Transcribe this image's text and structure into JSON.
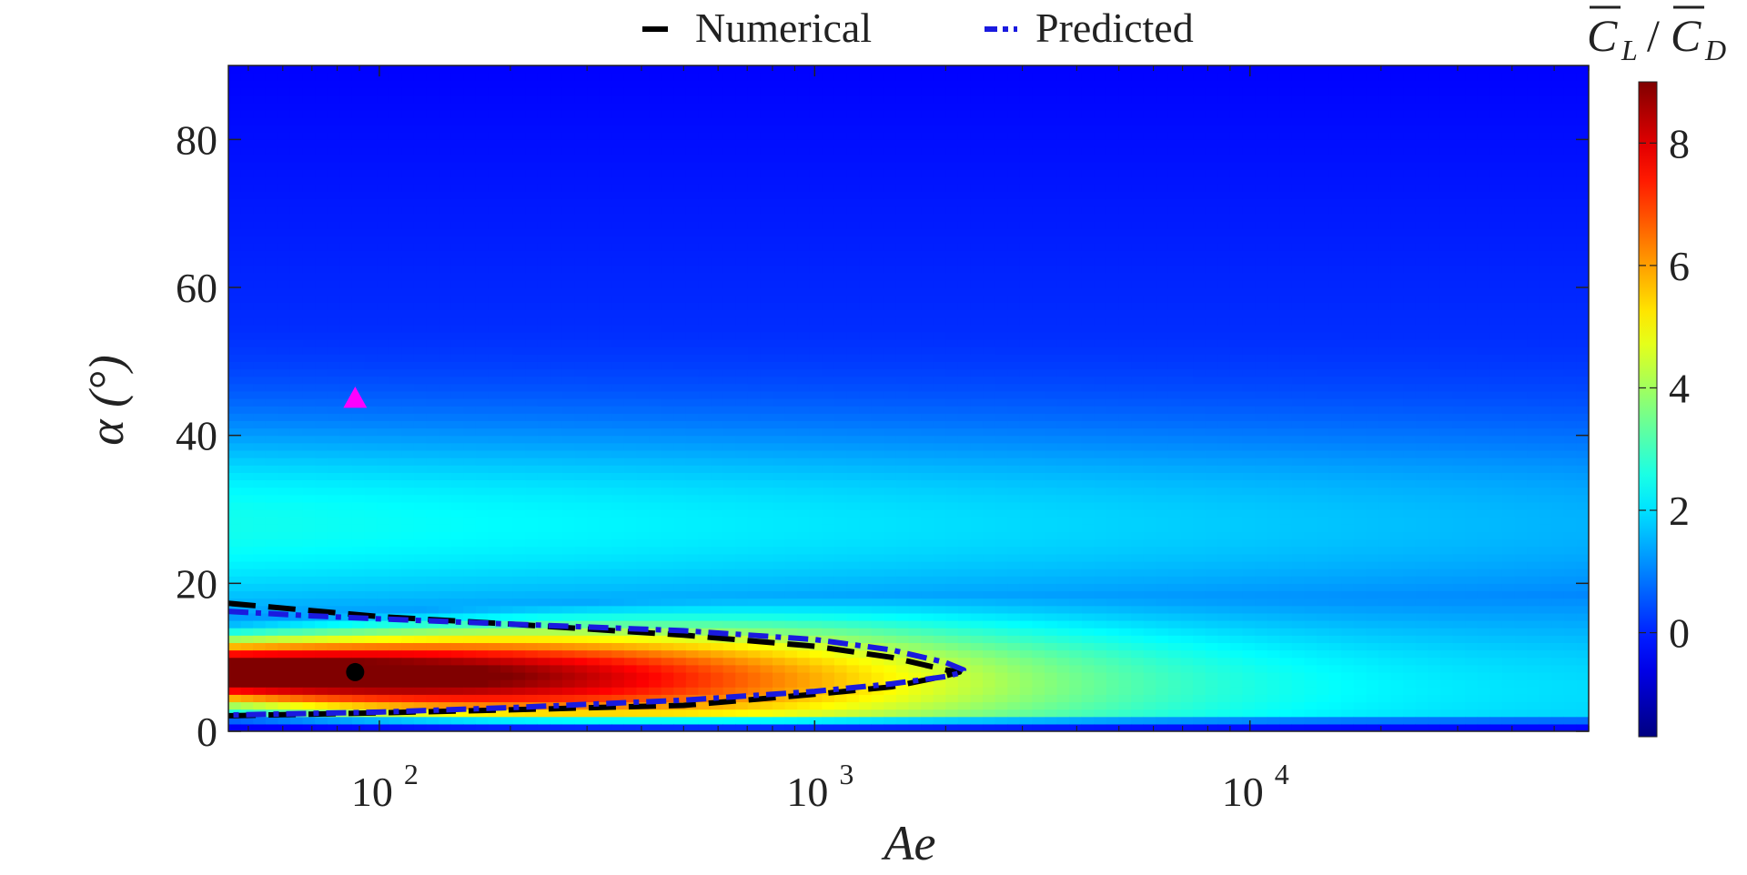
{
  "chart_data": {
    "type": "heatmap",
    "title": "",
    "xlabel": "Ae",
    "ylabel": "α (°)",
    "xscale": "log",
    "xlim": [
      45,
      60000
    ],
    "ylim": [
      0,
      90
    ],
    "xticks": [
      {
        "value": 100,
        "base": "10",
        "exp": "2"
      },
      {
        "value": 1000,
        "base": "10",
        "exp": "3"
      },
      {
        "value": 10000,
        "base": "10",
        "exp": "4"
      }
    ],
    "yticks": [
      0,
      20,
      40,
      60,
      80
    ],
    "grid": false,
    "colormap": "jet",
    "colorbar": {
      "label_main": "C",
      "label_sub_L": "L",
      "label_sub_D": "D",
      "label_slash": "/",
      "range": [
        -1.7,
        9
      ],
      "ticks": [
        0,
        2,
        4,
        6,
        8
      ]
    },
    "value_field": {
      "peak_value": 9,
      "peak_alpha": 8,
      "description_points": [
        {
          "Ae": 50,
          "alpha": 8,
          "value": 9
        },
        {
          "Ae": 1000,
          "alpha": 8,
          "value": 5
        },
        {
          "Ae": 3000,
          "alpha": 8,
          "value": 3.8
        },
        {
          "Ae": 50000,
          "alpha": 6,
          "value": 2
        }
      ]
    },
    "legend": {
      "position": "top-center",
      "entries": [
        {
          "name": "Numerical",
          "color": "#000000",
          "style": "dashed"
        },
        {
          "name": "Predicted",
          "color": "#1a1adf",
          "style": "dash-dot"
        }
      ]
    },
    "contours": [
      {
        "name": "Numerical",
        "color": "#000000",
        "upper": [
          [
            45,
            17.3
          ],
          [
            70,
            16.3
          ],
          [
            100,
            15.5
          ],
          [
            200,
            14.5
          ],
          [
            500,
            13
          ],
          [
            1000,
            11.5
          ],
          [
            1500,
            10
          ],
          [
            2000,
            8.3
          ]
        ],
        "lower": [
          [
            45,
            2.1
          ],
          [
            100,
            2.5
          ],
          [
            200,
            2.9
          ],
          [
            500,
            3.5
          ],
          [
            1000,
            5
          ],
          [
            1500,
            6
          ],
          [
            2000,
            7.5
          ],
          [
            2150,
            8
          ]
        ]
      },
      {
        "name": "Predicted",
        "color": "#1a1adf",
        "upper": [
          [
            45,
            16.2
          ],
          [
            70,
            15.6
          ],
          [
            100,
            15.2
          ],
          [
            200,
            14.5
          ],
          [
            500,
            13.6
          ],
          [
            1000,
            12.4
          ],
          [
            1500,
            11
          ],
          [
            2000,
            9.3
          ],
          [
            2200,
            8.3
          ]
        ],
        "lower": [
          [
            45,
            2.2
          ],
          [
            100,
            2.6
          ],
          [
            200,
            3.2
          ],
          [
            500,
            4.2
          ],
          [
            1000,
            5.4
          ],
          [
            1500,
            6.4
          ],
          [
            2000,
            7.4
          ],
          [
            2200,
            8
          ]
        ]
      }
    ],
    "markers": [
      {
        "shape": "circle",
        "Ae": 88,
        "alpha": 8,
        "color": "#000000"
      },
      {
        "shape": "triangle",
        "Ae": 88,
        "alpha": 45,
        "color": "#ff00ff"
      }
    ]
  }
}
